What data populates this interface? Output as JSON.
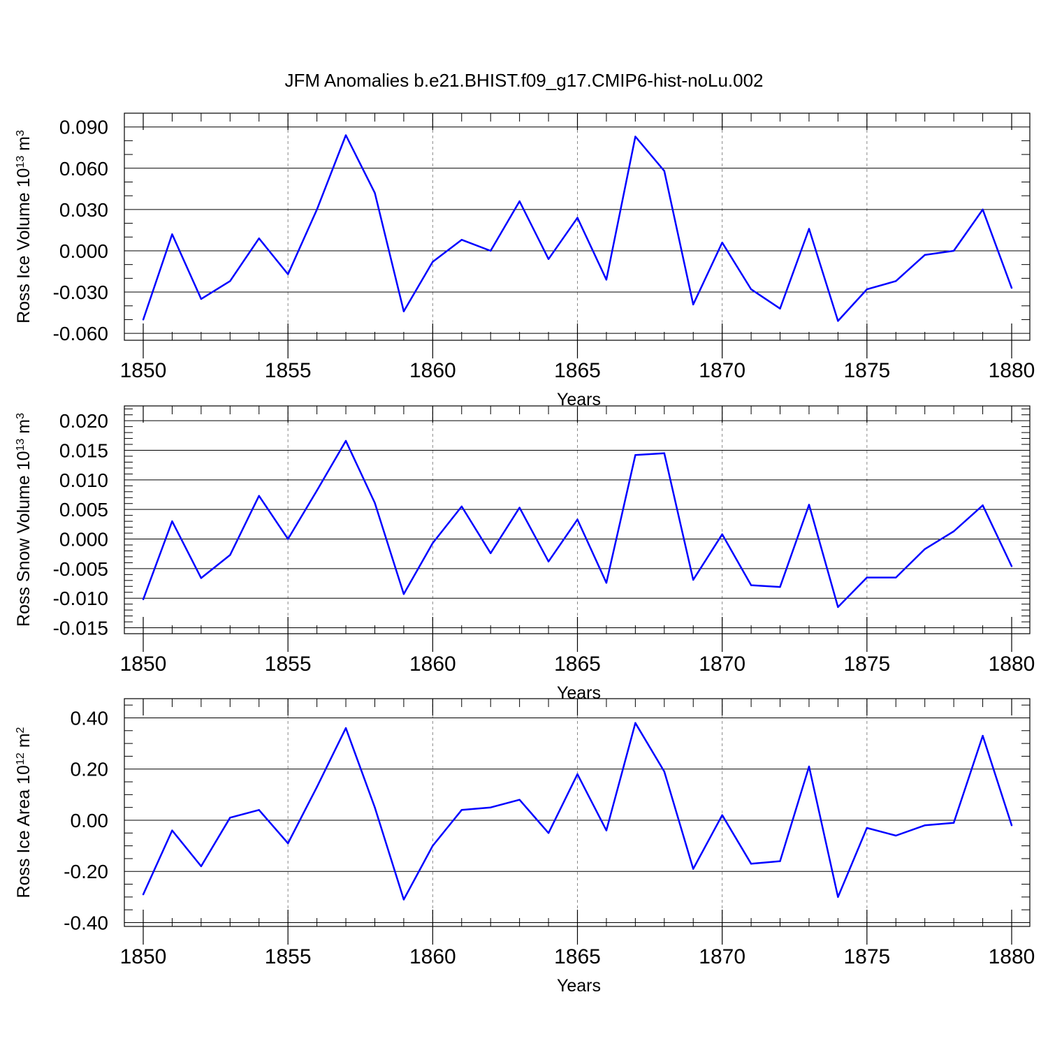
{
  "title": "JFM Anomalies b.e21.BHIST.f09_g17.CMIP6-hist-noLu.002",
  "colors": {
    "line": "#0000ff",
    "axis": "#000000",
    "grid": "#888888"
  },
  "chart_data": [
    {
      "type": "line",
      "id": "ice-volume",
      "ylabel_main": "Ross Ice Volume 10",
      "ylabel_exp": "13",
      "ylabel_unit": " m",
      "ylabel_unit_exp": "3",
      "xlabel": "Years",
      "xlim": [
        1850,
        1880
      ],
      "ylim": [
        -0.065,
        0.1
      ],
      "yticks": [
        -0.06,
        -0.03,
        0.0,
        0.03,
        0.06,
        0.09
      ],
      "ytick_labels": [
        "-0.060",
        "-0.030",
        "0.000",
        "0.030",
        "0.060",
        "0.090"
      ],
      "y_minor_step": 0.01,
      "xticks": [
        1850,
        1855,
        1860,
        1865,
        1870,
        1875,
        1880
      ],
      "xtick_labels": [
        "1850",
        "1855",
        "1860",
        "1865",
        "1870",
        "1875",
        "1880"
      ],
      "x": [
        1850,
        1851,
        1852,
        1853,
        1854,
        1855,
        1856,
        1857,
        1858,
        1859,
        1860,
        1861,
        1862,
        1863,
        1864,
        1865,
        1866,
        1867,
        1868,
        1869,
        1870,
        1871,
        1872,
        1873,
        1874,
        1875,
        1876,
        1877,
        1878,
        1879,
        1880
      ],
      "values": [
        -0.05,
        0.012,
        -0.035,
        -0.022,
        0.009,
        -0.017,
        0.03,
        0.084,
        0.042,
        -0.044,
        -0.008,
        0.008,
        0.0,
        0.036,
        -0.006,
        0.024,
        -0.021,
        0.083,
        0.058,
        -0.039,
        0.006,
        -0.028,
        -0.042,
        0.016,
        -0.051,
        -0.028,
        -0.022,
        -0.003,
        0.0,
        0.03,
        -0.027
      ]
    },
    {
      "type": "line",
      "id": "snow-volume",
      "ylabel_main": "Ross Snow Volume 10",
      "ylabel_exp": "13",
      "ylabel_unit": " m",
      "ylabel_unit_exp": "3",
      "xlabel": "Years",
      "xlim": [
        1850,
        1880
      ],
      "ylim": [
        -0.016,
        0.0225
      ],
      "yticks": [
        -0.015,
        -0.01,
        -0.005,
        0.0,
        0.005,
        0.01,
        0.015,
        0.02
      ],
      "ytick_labels": [
        "-0.015",
        "-0.010",
        "-0.005",
        "0.000",
        "0.005",
        "0.010",
        "0.015",
        "0.020"
      ],
      "y_minor_step": 0.001,
      "xticks": [
        1850,
        1855,
        1860,
        1865,
        1870,
        1875,
        1880
      ],
      "xtick_labels": [
        "1850",
        "1855",
        "1860",
        "1865",
        "1870",
        "1875",
        "1880"
      ],
      "x": [
        1850,
        1851,
        1852,
        1853,
        1854,
        1855,
        1856,
        1857,
        1858,
        1859,
        1860,
        1861,
        1862,
        1863,
        1864,
        1865,
        1866,
        1867,
        1868,
        1869,
        1870,
        1871,
        1872,
        1873,
        1874,
        1875,
        1876,
        1877,
        1878,
        1879,
        1880
      ],
      "values": [
        -0.0102,
        0.003,
        -0.0066,
        -0.0027,
        0.0073,
        0.0,
        0.0082,
        0.0166,
        0.0061,
        -0.0093,
        -0.0007,
        0.0055,
        -0.0024,
        0.0053,
        -0.0038,
        0.0033,
        -0.0074,
        0.0142,
        0.0145,
        -0.0069,
        0.0008,
        -0.0078,
        -0.0081,
        0.0058,
        -0.0115,
        -0.0065,
        -0.0065,
        -0.0017,
        0.0013,
        0.0057,
        -0.0046
      ]
    },
    {
      "type": "line",
      "id": "ice-area",
      "ylabel_main": "Ross Ice Area 10",
      "ylabel_exp": "12",
      "ylabel_unit": " m",
      "ylabel_unit_exp": "2",
      "xlabel": "Years",
      "xlim": [
        1850,
        1880
      ],
      "ylim": [
        -0.415,
        0.475
      ],
      "yticks": [
        -0.4,
        -0.2,
        0.0,
        0.2,
        0.4
      ],
      "ytick_labels": [
        "-0.40",
        "-0.20",
        "0.00",
        "0.20",
        "0.40"
      ],
      "y_minor_step": 0.05,
      "xticks": [
        1850,
        1855,
        1860,
        1865,
        1870,
        1875,
        1880
      ],
      "xtick_labels": [
        "1850",
        "1855",
        "1860",
        "1865",
        "1870",
        "1875",
        "1880"
      ],
      "x": [
        1850,
        1851,
        1852,
        1853,
        1854,
        1855,
        1856,
        1857,
        1858,
        1859,
        1860,
        1861,
        1862,
        1863,
        1864,
        1865,
        1866,
        1867,
        1868,
        1869,
        1870,
        1871,
        1872,
        1873,
        1874,
        1875,
        1876,
        1877,
        1878,
        1879,
        1880
      ],
      "values": [
        -0.29,
        -0.04,
        -0.18,
        0.01,
        0.04,
        -0.09,
        0.13,
        0.36,
        0.05,
        -0.31,
        -0.1,
        0.04,
        0.05,
        0.08,
        -0.05,
        0.18,
        -0.04,
        0.38,
        0.19,
        -0.19,
        0.02,
        -0.17,
        -0.16,
        0.21,
        -0.3,
        -0.03,
        -0.06,
        -0.02,
        -0.01,
        0.33,
        -0.02
      ]
    }
  ]
}
